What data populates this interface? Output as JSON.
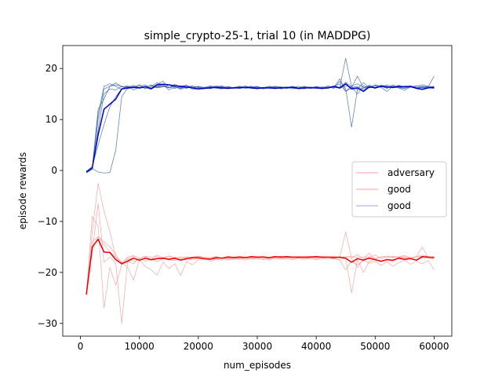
{
  "chart_data": {
    "type": "line",
    "title": "simple_crypto-25-1, trial 10 (in MADDPG)",
    "xlabel": "num_episodes",
    "ylabel": "episode rewards",
    "xlim": [
      -3000,
      63000
    ],
    "ylim": [
      -32.5,
      24.5
    ],
    "xticks": [
      0,
      10000,
      20000,
      30000,
      40000,
      50000,
      60000
    ],
    "xtick_labels": [
      "0",
      "10000",
      "20000",
      "30000",
      "40000",
      "50000",
      "60000"
    ],
    "yticks": [
      -30,
      -20,
      -10,
      0,
      10,
      20
    ],
    "ytick_labels": [
      "−30",
      "−20",
      "−10",
      "0",
      "10",
      "20"
    ],
    "grid": false,
    "legend": {
      "position": "center-right",
      "entries": [
        {
          "label": "adversary",
          "color": "#ff0000"
        },
        {
          "label": "good",
          "color": "#ff0000"
        },
        {
          "label": "good",
          "color": "#0000b0"
        }
      ]
    },
    "x": [
      1000,
      2000,
      3000,
      4000,
      5000,
      6000,
      7000,
      8000,
      9000,
      10000,
      11000,
      12000,
      13000,
      14000,
      15000,
      16000,
      17000,
      18000,
      19000,
      20000,
      21000,
      22000,
      23000,
      24000,
      25000,
      26000,
      27000,
      28000,
      29000,
      30000,
      31000,
      32000,
      33000,
      34000,
      35000,
      36000,
      37000,
      38000,
      39000,
      40000,
      41000,
      42000,
      43000,
      44000,
      45000,
      46000,
      47000,
      48000,
      49000,
      50000,
      51000,
      52000,
      53000,
      54000,
      55000,
      56000,
      57000,
      58000,
      59000,
      60000
    ],
    "series": [
      {
        "role": "mean",
        "color": "#0000c0",
        "values": [
          -0.3,
          0.5,
          7,
          12,
          13,
          14,
          16,
          16.2,
          16.3,
          16.2,
          16.4,
          16,
          16.8,
          16.9,
          16.8,
          16.6,
          16.5,
          16.4,
          16.2,
          16,
          16.1,
          16.2,
          16.3,
          16.2,
          16.1,
          16.2,
          16.2,
          16.3,
          16.2,
          16.1,
          16.2,
          16.2,
          16.1,
          16.2,
          16.2,
          16.3,
          16.1,
          16.2,
          16.2,
          16.2,
          16.1,
          16.2,
          16.5,
          16.2,
          17,
          16,
          16.2,
          15.5,
          16.4,
          16.2,
          16.5,
          16.4,
          16.3,
          16.5,
          16.4,
          16.5,
          16.1,
          15.9,
          16.2,
          16.3
        ]
      },
      {
        "role": "mean",
        "color": "#ee0000",
        "values": [
          -24.3,
          -15,
          -13.5,
          -16,
          -16.1,
          -17.5,
          -18.3,
          -17.8,
          -17.2,
          -17.6,
          -17.2,
          -17.5,
          -17.3,
          -17.2,
          -17.4,
          -17.2,
          -17.6,
          -17.3,
          -17.1,
          -17.1,
          -17.3,
          -17.4,
          -17.1,
          -17.2,
          -17,
          -17.1,
          -17,
          -17.1,
          -16.9,
          -17,
          -17,
          -17.1,
          -16.9,
          -17,
          -16.9,
          -17,
          -17,
          -17,
          -17,
          -16.9,
          -17,
          -17,
          -17.1,
          -17,
          -17.2,
          -18,
          -17.3,
          -17.6,
          -17.2,
          -17.5,
          -17.8,
          -17.5,
          -17.6,
          -17.2,
          -17.4,
          -17.3,
          -17.6,
          -16.9,
          -17,
          -17.1
        ]
      },
      {
        "role": "run",
        "color": "#3c69ad",
        "values": [
          -0.5,
          0.2,
          10,
          16,
          16.5,
          16.8,
          16.5,
          16,
          16.3,
          16.8,
          16,
          16.5,
          17.2,
          16.8,
          15.8,
          16.4,
          16.2,
          16.8,
          15.9,
          16,
          16.3,
          16.5,
          16.1,
          16,
          16.4,
          16.2,
          16.3,
          16.6,
          16.1,
          16,
          16.2,
          16.5,
          16.4,
          16,
          16.3,
          16.4,
          16,
          16.1,
          16.3,
          16.2,
          16,
          16.4,
          16.2,
          16.3,
          22,
          16.5,
          15.8,
          16.1,
          16.8,
          16.2,
          16.6,
          16.5,
          16.2,
          16.7,
          16.3,
          16.6,
          16.2,
          16,
          16.4,
          18.5
        ]
      },
      {
        "role": "run",
        "color": "#3c69ad",
        "values": [
          -0.3,
          0.5,
          12,
          14,
          16.5,
          17.2,
          16.4,
          16.6,
          16.2,
          16.5,
          16.8,
          16,
          16.5,
          16.8,
          16.2,
          16.9,
          16.4,
          16.2,
          16.5,
          16.3,
          16.2,
          16.6,
          16.4,
          16.2,
          16.3,
          16.1,
          16.5,
          16.3,
          16.2,
          16.4,
          16.1,
          16.3,
          16.5,
          16.4,
          16.2,
          16.3,
          16.2,
          16,
          16.4,
          16.1,
          16.3,
          16.2,
          16.5,
          17,
          15.5,
          16.6,
          17,
          16.3,
          16.5,
          16.1,
          16.8,
          16.4,
          16.2,
          16.3,
          16.6,
          16.5,
          16.3,
          16.2,
          16.5,
          16.4
        ]
      },
      {
        "role": "run",
        "color": "#3c69ad",
        "values": [
          -0.2,
          0.8,
          5,
          9,
          12.5,
          14.5,
          16,
          16.6,
          15.8,
          16.3,
          16.5,
          16.2,
          16.9,
          17.5,
          16.3,
          16.5,
          15.9,
          16.4,
          16.6,
          16.2,
          16,
          16.4,
          16.3,
          16,
          16.5,
          16.2,
          16.1,
          16.3,
          16.4,
          16.2,
          16,
          16.2,
          16.3,
          16.1,
          16.4,
          16.2,
          16,
          16.3,
          16.1,
          16.5,
          16.2,
          16.4,
          16.1,
          17.5,
          16.1,
          8.5,
          16,
          17.2,
          16.2,
          16.5,
          16.3,
          16.8,
          16.4,
          16.2,
          16.1,
          16.4,
          16.6,
          16.3,
          16.2,
          16.1
        ]
      },
      {
        "role": "run",
        "color": "#3c69ad",
        "values": [
          -0.4,
          0.4,
          -0.3,
          -0.5,
          -0.4,
          4,
          14.5,
          16.2,
          16.5,
          16.1,
          16.4,
          16.8,
          16.3,
          16.5,
          16.2,
          16.7,
          16.3,
          16.1,
          16.5,
          16.4,
          16.2,
          16.3,
          16.6,
          16.4,
          16.1,
          16.3,
          16.2,
          16.4,
          16.5,
          16.2,
          16.3,
          16.1,
          16.4,
          16.2,
          16.3,
          16.5,
          16.2,
          16.4,
          16.1,
          16.3,
          16.2,
          16.1,
          16.5,
          16.2,
          17.3,
          16.4,
          15,
          16.6,
          16.2,
          16.8,
          16.5,
          16.1,
          16.6,
          16.2,
          15.7,
          16.4,
          16.5,
          16.8,
          16.5,
          16
        ]
      },
      {
        "role": "run",
        "color": "#3c69ad",
        "values": [
          -0.1,
          0.3,
          8,
          15,
          16,
          15.8,
          16.5,
          16.3,
          16.7,
          16.2,
          16.5,
          16.1,
          16.4,
          16.6,
          16.3,
          16.1,
          16.5,
          16.7,
          16.2,
          16.4,
          16.1,
          16.3,
          16.2,
          16.5,
          16.3,
          16.1,
          16.4,
          16.2,
          16.3,
          16.5,
          16.1,
          16.3,
          16.2,
          16.4,
          16.1,
          16.3,
          16.5,
          16.2,
          16.3,
          16.1,
          16.4,
          16.2,
          16.3,
          16.1,
          16.6,
          16.3,
          18.5,
          16.2,
          16.4,
          16.7,
          16.3,
          15.5,
          16.5,
          16.2,
          16.4,
          16.3,
          16.1,
          16.4,
          16.2,
          16.5
        ]
      },
      {
        "role": "run",
        "color": "#3c69ad",
        "values": [
          -0.3,
          0.6,
          11,
          16.5,
          17,
          16.5,
          15.9,
          16.4,
          16.3,
          16.8,
          16,
          16.6,
          16.2,
          16.4,
          16.8,
          16.3,
          16.1,
          16.4,
          16.2,
          16.5,
          16.3,
          16,
          16.4,
          16.6,
          16.2,
          16.3,
          16.5,
          16.1,
          16.3,
          16.4,
          16.2,
          16.5,
          16.1,
          16.3,
          16.4,
          16,
          16.2,
          16.5,
          16.3,
          16.4,
          16.2,
          16.6,
          16.3,
          18,
          15.5,
          16.2,
          16.5,
          15.8,
          16.6,
          16.1,
          16.5,
          16.2,
          16.8,
          16.3,
          16.1,
          16.4,
          16.2,
          16.5,
          16.4,
          16.3
        ]
      },
      {
        "role": "run",
        "color": "#ff9a9a",
        "values": [
          -24,
          -12,
          -2.5,
          -8,
          -12,
          -17,
          -18.5,
          -17.5,
          -16.8,
          -17.2,
          -16.9,
          -17.5,
          -16.6,
          -17.1,
          -16.8,
          -17.4,
          -16.9,
          -17.2,
          -17,
          -16.8,
          -17.3,
          -17.1,
          -16.9,
          -17.2,
          -16.8,
          -17,
          -17.1,
          -16.9,
          -17.2,
          -17,
          -16.9,
          -17.1,
          -17,
          -16.8,
          -17.2,
          -17,
          -16.9,
          -17.1,
          -17,
          -16.8,
          -17.1,
          -17,
          -16.9,
          -17.2,
          -17,
          -16.8,
          -17.1,
          -17,
          -16.9,
          -17.2,
          -17,
          -16.8,
          -17.1,
          -17,
          -16.9,
          -17.2,
          -17,
          -16.8,
          -17.1,
          -17
        ]
      },
      {
        "role": "run",
        "color": "#ff9a9a",
        "values": [
          -24.5,
          -16,
          -6.5,
          -18,
          -17,
          -18.2,
          -30,
          -17.8,
          -18.3,
          -17.2,
          -17.8,
          -17.4,
          -17.9,
          -17.3,
          -17.5,
          -17.7,
          -17.2,
          -17.6,
          -17.4,
          -17.2,
          -17.5,
          -17.3,
          -17.4,
          -17.1,
          -17.6,
          -17.2,
          -17.4,
          -17.3,
          -17.1,
          -17.2,
          -17.5,
          -17.3,
          -17.2,
          -17.4,
          -17.1,
          -17.3,
          -17.2,
          -17.4,
          -17.1,
          -17.3,
          -17.2,
          -17,
          -17.3,
          -17.5,
          -17.2,
          -24,
          -17.5,
          -20,
          -17.8,
          -17.4,
          -17.9,
          -17.5,
          -17.8,
          -17.2,
          -17.6,
          -17.3,
          -17.5,
          -17.1,
          -17.2,
          -17.4
        ]
      },
      {
        "role": "run",
        "color": "#ff9a9a",
        "values": [
          -24.2,
          -9,
          -11,
          -27,
          -19,
          -22.5,
          -18.5,
          -17.2,
          -17.8,
          -17.5,
          -17.3,
          -17.6,
          -17.4,
          -17.2,
          -17.6,
          -17.3,
          -17.5,
          -17.1,
          -17.4,
          -17.3,
          -17.2,
          -17.5,
          -17.3,
          -17.1,
          -17.4,
          -17.2,
          -17.3,
          -17.1,
          -17.4,
          -17.2,
          -17,
          -17.3,
          -17.1,
          -17.2,
          -17,
          -17.3,
          -17.1,
          -17.2,
          -17,
          -17.1,
          -17.3,
          -17.1,
          -17.2,
          -17,
          -12,
          -17.3,
          -19,
          -17.4,
          -16.2,
          -17.5,
          -16.9,
          -17.2,
          -16.8,
          -17.1,
          -17,
          -17.3,
          -16.9,
          -15,
          -17.2,
          -16.8
        ]
      },
      {
        "role": "run",
        "color": "#ff9a9a",
        "values": [
          -24.4,
          -15.5,
          -13,
          -14,
          -15,
          -16.5,
          -18.2,
          -17,
          -16.7,
          -17.2,
          -16.8,
          -17,
          -16.9,
          -17.3,
          -16.8,
          -17,
          -17.2,
          -16.9,
          -17.1,
          -16.8,
          -17,
          -17.1,
          -16.9,
          -17.2,
          -16.9,
          -17,
          -16.8,
          -17.1,
          -16.9,
          -17,
          -16.8,
          -17.1,
          -16.9,
          -17,
          -16.8,
          -17.1,
          -16.9,
          -17,
          -16.8,
          -17.1,
          -16.9,
          -17,
          -16.8,
          -17.1,
          -16.9,
          -17.2,
          -16.5,
          -17.4,
          -17,
          -16.6,
          -17.3,
          -16.8,
          -17,
          -16.9,
          -16.7,
          -17.1,
          -16.9,
          -16.6,
          -16.9,
          -17.1
        ]
      },
      {
        "role": "run",
        "color": "#ff9a9a",
        "values": [
          -24.6,
          -14,
          -13,
          -14.5,
          -16,
          -17,
          -18,
          -19,
          -21.5,
          -17.5,
          -18.8,
          -19.5,
          -20.5,
          -18,
          -19.2,
          -18.3,
          -20.6,
          -17.9,
          -18.5,
          -17.5,
          -17.2,
          -17.8,
          -17.4,
          -17.6,
          -17.2,
          -17.5,
          -17.3,
          -17.6,
          -17.2,
          -17.4,
          -17.3,
          -17.5,
          -17.2,
          -17.4,
          -17.3,
          -17.5,
          -17.2,
          -17.4,
          -17.3,
          -17.5,
          -17.2,
          -17.4,
          -17.3,
          -17.6,
          -19.5,
          -17.8,
          -18.5,
          -17.6,
          -18.2,
          -17.8,
          -18.6,
          -17.9,
          -18.8,
          -18.1,
          -17.6,
          -18.4,
          -17.8,
          -18.3,
          -17.7,
          -19.5
        ]
      }
    ]
  }
}
